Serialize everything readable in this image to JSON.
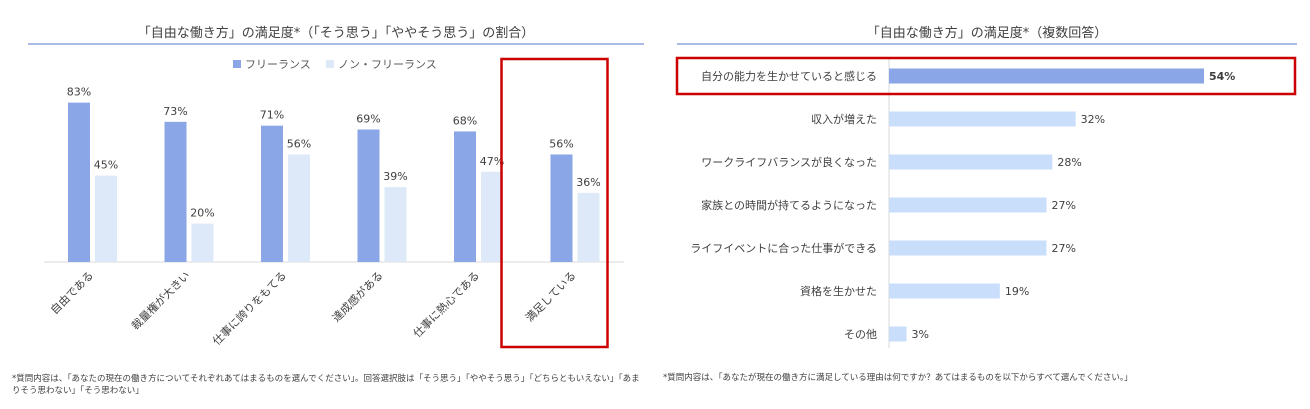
{
  "charts": {
    "left": {
      "title": "「自由な働き方」の満足度*（「そう思う」「ややそう思う」の割合）",
      "legend": [
        "フリーランス",
        "ノン・フリーランス"
      ],
      "footnote": "*質問内容は、「あなたの現在の働き方についてそれぞれあてはまるものを選んでください」。回答選択肢は「そう思う」「ややそう思う」「どちらともいえない」「あまりそう思わない」「そう思わない」"
    },
    "right": {
      "title": "「自由な働き方」の満足度*（複数回答）",
      "footnote": "*質問内容は、「あなたが現在の働き方に満足している理由は何ですか？あてはまるものを以下からすべて選んでください。」"
    }
  },
  "colors": {
    "freelance": "#8aa6e6",
    "nonfreelance": "#dde8f8",
    "rightbar_top": "#8aa6e6",
    "rightbar": "#c9defa",
    "highlight": "#cc0000",
    "rule": "#a9bce8"
  },
  "chart_data": [
    {
      "type": "bar",
      "title": "「自由な働き方」の満足度*（「そう思う」「ややそう思う」の割合）",
      "categories": [
        "自由である",
        "裁量権が大きい",
        "仕事に誇りをもてる",
        "達成感がある",
        "仕事に熱心である",
        "満足している"
      ],
      "series": [
        {
          "name": "フリーランス",
          "values": [
            83,
            73,
            71,
            69,
            68,
            56
          ]
        },
        {
          "name": "ノン・フリーランス",
          "values": [
            45,
            20,
            56,
            39,
            47,
            36
          ]
        }
      ],
      "unit": "%",
      "ylim": [
        0,
        100
      ],
      "grid": false,
      "legend": "top-center",
      "highlighted_category": "満足している"
    },
    {
      "type": "bar",
      "orientation": "horizontal",
      "title": "「自由な働き方」の満足度*（複数回答）",
      "categories": [
        "自分の能力を生かせていると感じる",
        "収入が増えた",
        "ワークライフバランスが良くなった",
        "家族との時間が持てるようになった",
        "ライフイベントに合った仕事ができる",
        "資格を生かせた",
        "その他"
      ],
      "values": [
        54,
        32,
        28,
        27,
        27,
        19,
        3
      ],
      "unit": "%",
      "xlim": [
        0,
        60
      ],
      "grid": false,
      "highlighted_category": "自分の能力を生かせていると感じる"
    }
  ]
}
